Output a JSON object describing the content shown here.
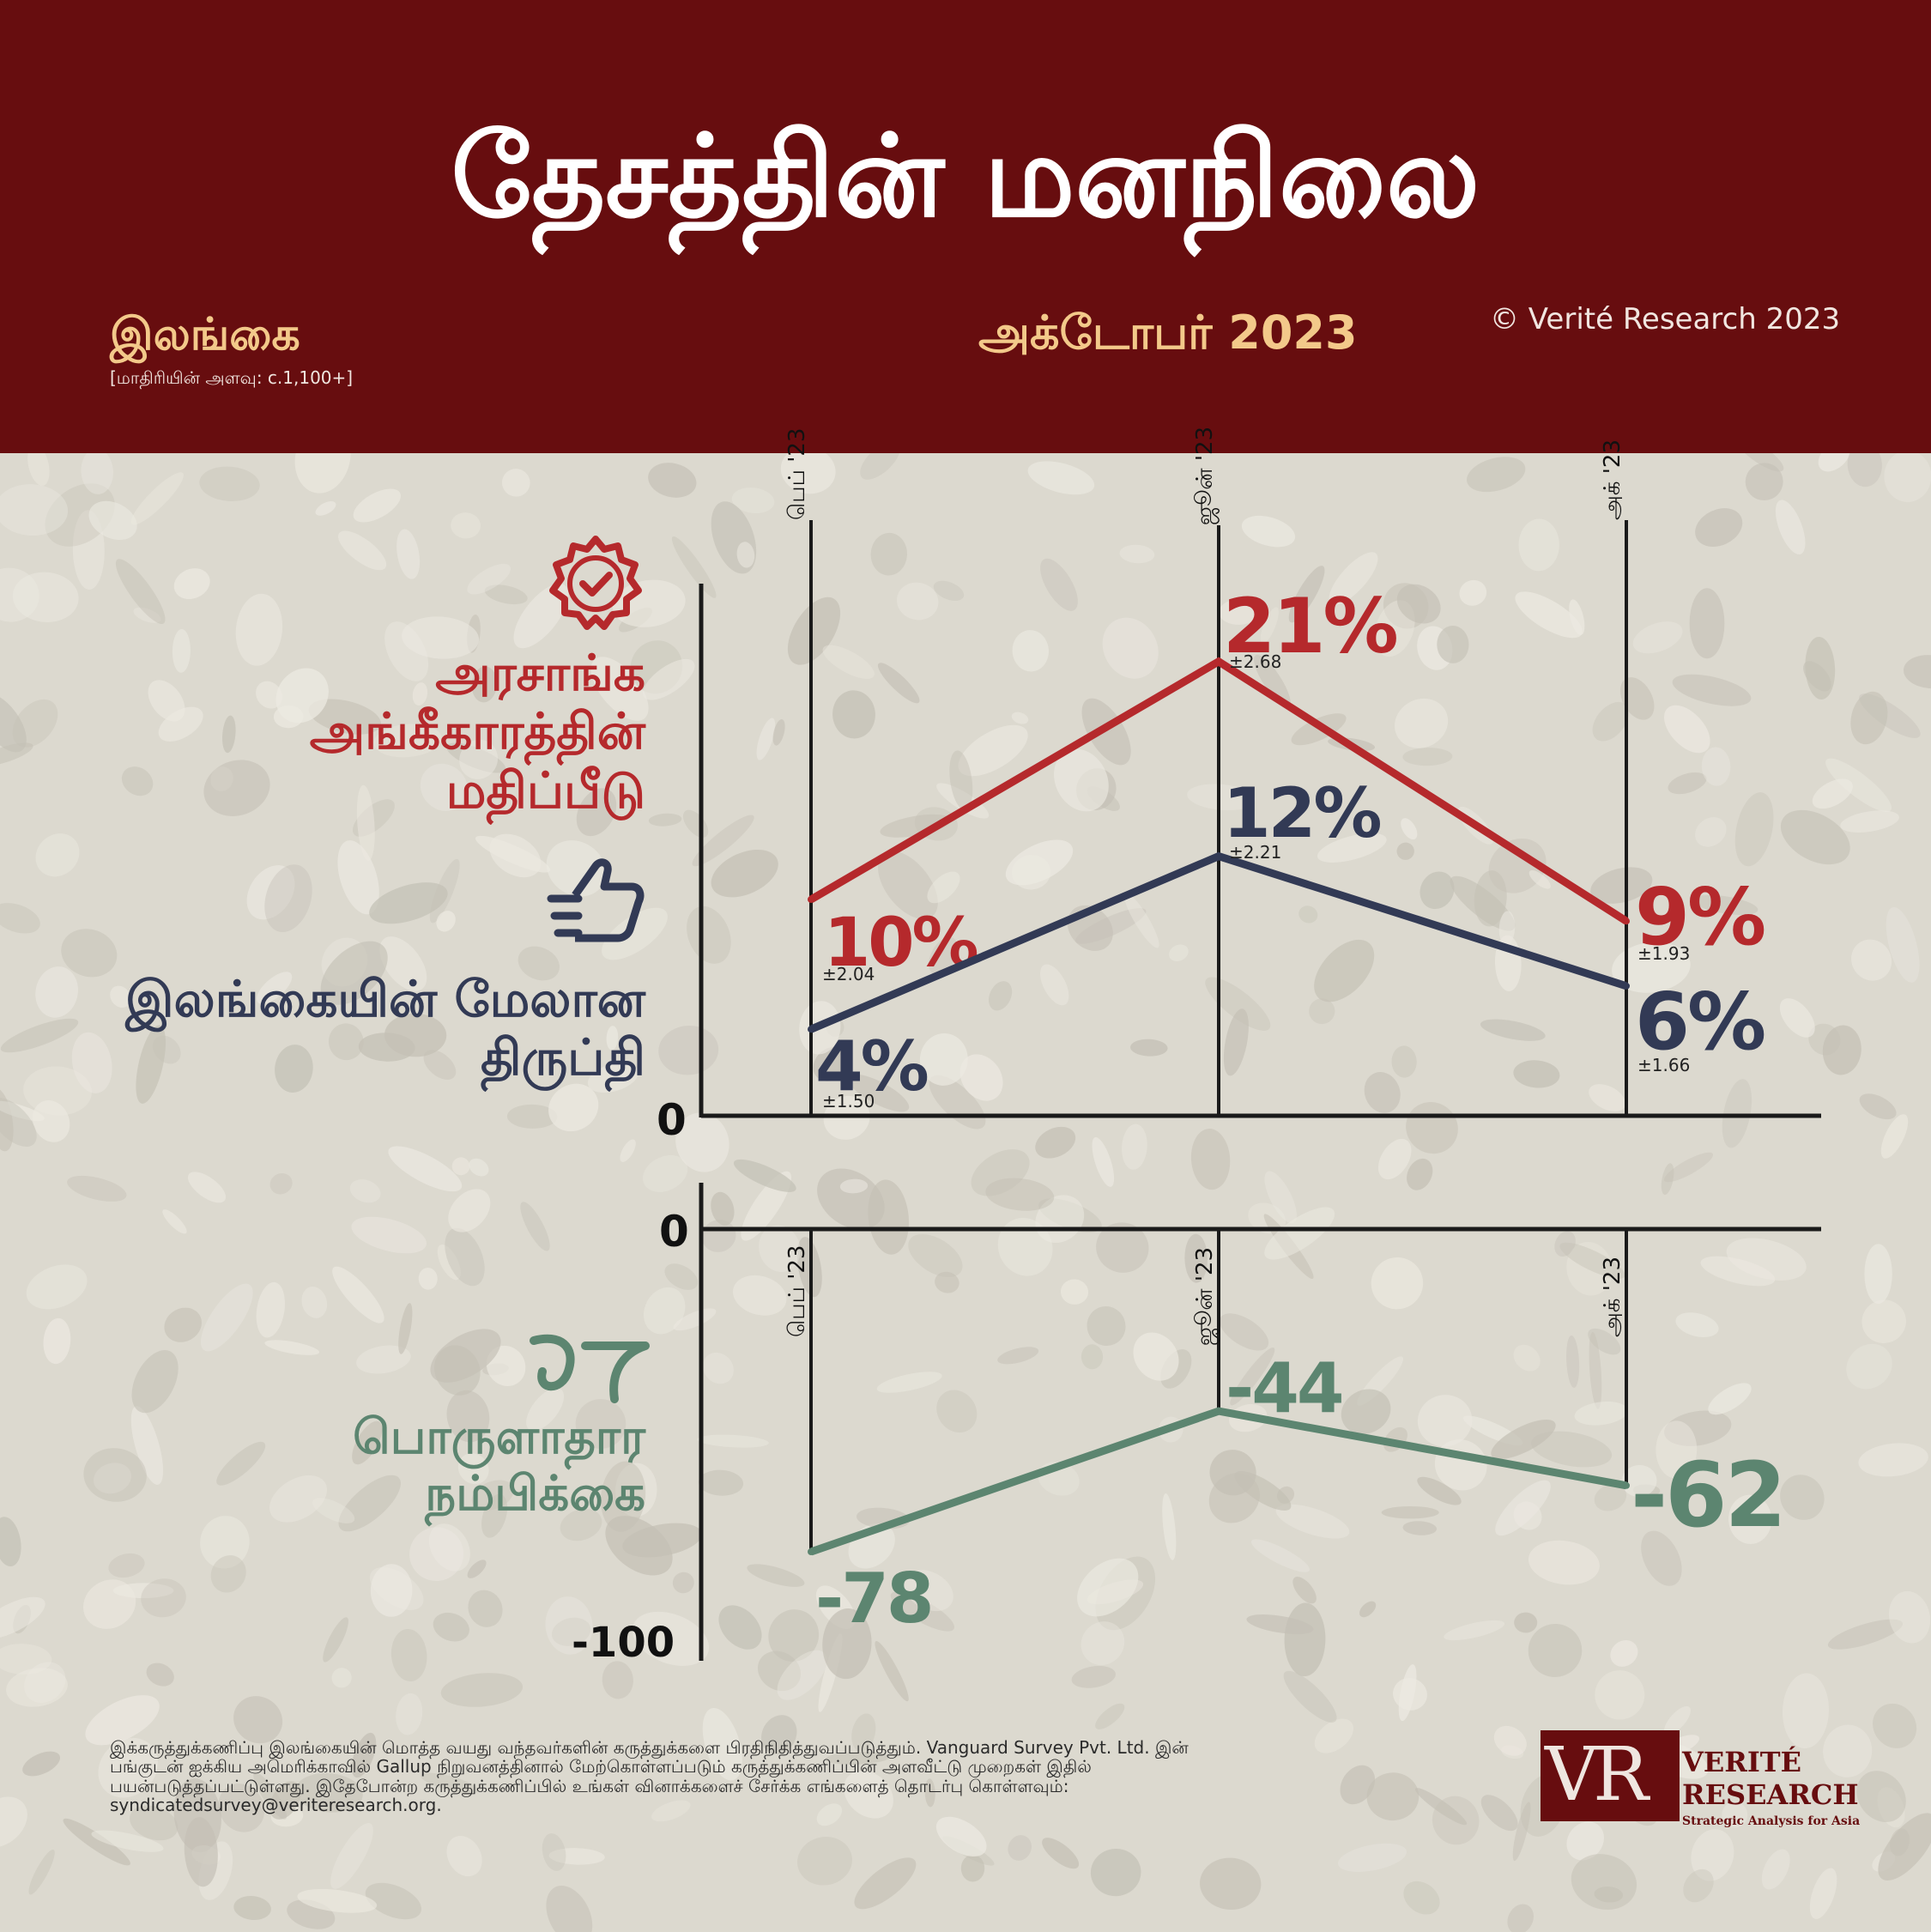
{
  "header": {
    "title": "தேசத்தின் மனநிலை",
    "country": "இலங்கை",
    "sample_size": "[மாதிரியின் அளவு: c.1,100+]",
    "period": "அக்டோபர் 2023",
    "copyright": "© Verité Research 2023"
  },
  "labels": {
    "approval": "அரசாங்க அங்கீகாரத்தின் மதிப்பீடு",
    "satisfaction": "இலங்கையின் மேலான திருப்தி",
    "economic": "பொருளாதார நம்பிக்கை"
  },
  "colors": {
    "header_bg": "#670d0f",
    "accent": "#f3c98a",
    "approval": "#b5292c",
    "satisfaction": "#323a55",
    "economic": "#5c8570",
    "axis": "#1a1a1a"
  },
  "icons": {
    "approval": "verified-badge-icon",
    "satisfaction": "thumbs-up-icon",
    "economic": "growth-trend-icon"
  },
  "chart_data": [
    {
      "type": "line",
      "categories": [
        "பெப் '23",
        "ஜூன் '23",
        "அக் '23"
      ],
      "y_axis_label": "0",
      "ylim": [
        0,
        25
      ],
      "series": [
        {
          "key": "approval",
          "values": [
            10,
            21,
            9
          ],
          "labels": [
            "10%",
            "21%",
            "9%"
          ],
          "margins": [
            "±2.04",
            "±2.68",
            "±1.93"
          ],
          "color": "#b5292c"
        },
        {
          "key": "satisfaction",
          "values": [
            4,
            12,
            6
          ],
          "labels": [
            "4%",
            "12%",
            "6%"
          ],
          "margins": [
            "±1.50",
            "±2.21",
            "±1.66"
          ],
          "color": "#323a55"
        }
      ]
    },
    {
      "type": "line",
      "categories": [
        "பெப் '23",
        "ஜூன் '23",
        "அக் '23"
      ],
      "y_top_label": "0",
      "y_bottom_label": "-100",
      "ylim": [
        -100,
        0
      ],
      "series": [
        {
          "key": "economic",
          "values": [
            -78,
            -44,
            -62
          ],
          "labels": [
            "-78",
            "-44",
            "-62"
          ],
          "color": "#5c8570"
        }
      ]
    }
  ],
  "footer": {
    "note": "இக்கருத்துக்கணிப்பு இலங்கையின் மொத்த வயது வந்தவர்களின் கருத்துக்களை பிரதிநிதித்துவப்படுத்தும். Vanguard Survey Pvt. Ltd. இன் பங்குடன் ஐக்கிய அமெரிக்காவில் Gallup நிறுவனத்தினால் மேற்கொள்ளப்படும் கருத்துக்கணிப்பின் அளவீட்டு முறைகள் இதில் பயன்படுத்தப்பட்டுள்ளது. இதேபோன்ற கருத்துக்கணிப்பில் உங்கள் வினாக்களைச் சேர்க்க எங்களைத் தொடர்பு கொள்ளவும்: syndicatedsurvey@veriteresearch.org."
  },
  "logo": {
    "monogram": "VR",
    "name_line1": "VERITÉ",
    "name_line2": "RESEARCH",
    "tagline": "Strategic Analysis for Asia"
  }
}
